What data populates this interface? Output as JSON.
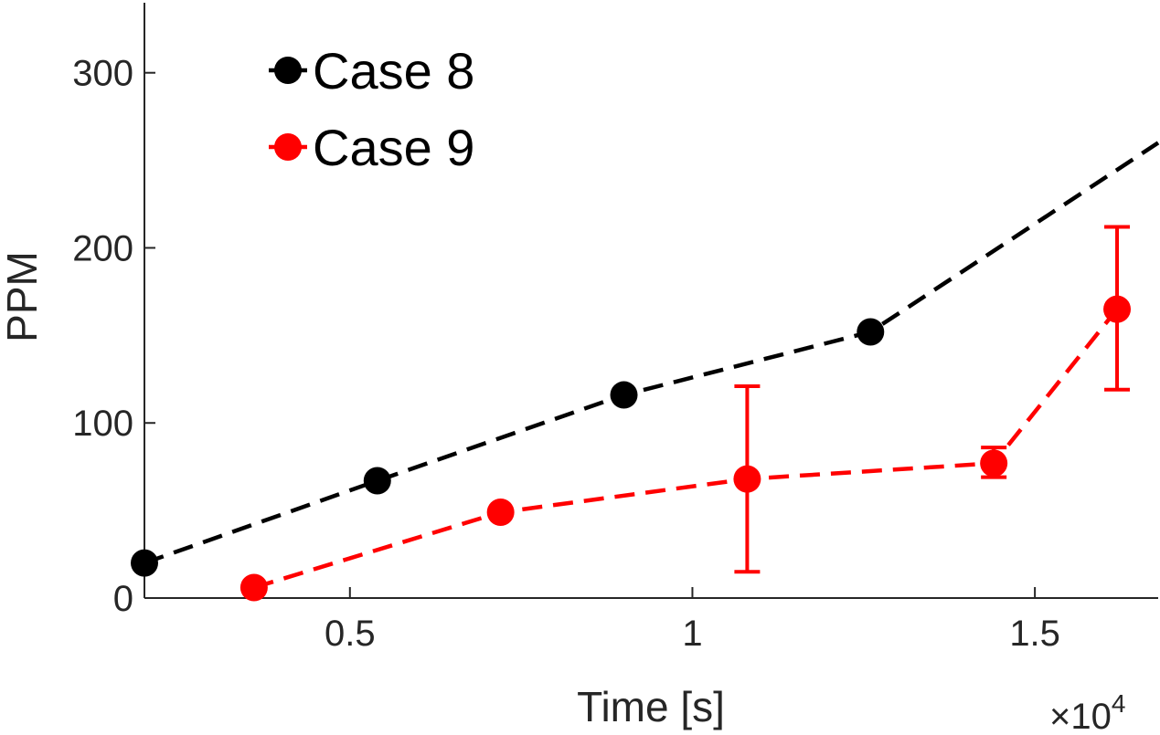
{
  "chart_data": {
    "type": "line",
    "title": "",
    "xlabel": "Time [s]",
    "ylabel": "PPM",
    "x_multiplier": "×10",
    "x_multiplier_exp": "4",
    "xlim": [
      0.2,
      1.68
    ],
    "ylim": [
      0,
      340
    ],
    "xticks": [
      0.5,
      1,
      1.5
    ],
    "xtick_labels": [
      "0.5",
      "1",
      "1.5"
    ],
    "yticks": [
      0,
      100,
      200,
      300
    ],
    "ytick_labels": [
      "0",
      "100",
      "200",
      "300"
    ],
    "grid": false,
    "legend_position": "top-left",
    "series": [
      {
        "name": "Case 8",
        "color": "#000000",
        "x": [
          0.2,
          0.54,
          0.9,
          1.26,
          1.68
        ],
        "y": [
          20,
          67,
          116,
          152,
          260
        ],
        "markers": [
          true,
          true,
          true,
          true,
          false
        ],
        "err_low": null,
        "err_high": null
      },
      {
        "name": "Case 9",
        "color": "#ff0000",
        "x": [
          0.36,
          0.72,
          1.08,
          1.44,
          1.62
        ],
        "y": [
          6,
          49,
          68,
          77,
          165
        ],
        "markers": [
          true,
          true,
          true,
          true,
          true
        ],
        "err_low": [
          null,
          null,
          15,
          69,
          119
        ],
        "err_high": [
          null,
          null,
          121,
          86,
          212
        ]
      }
    ]
  }
}
